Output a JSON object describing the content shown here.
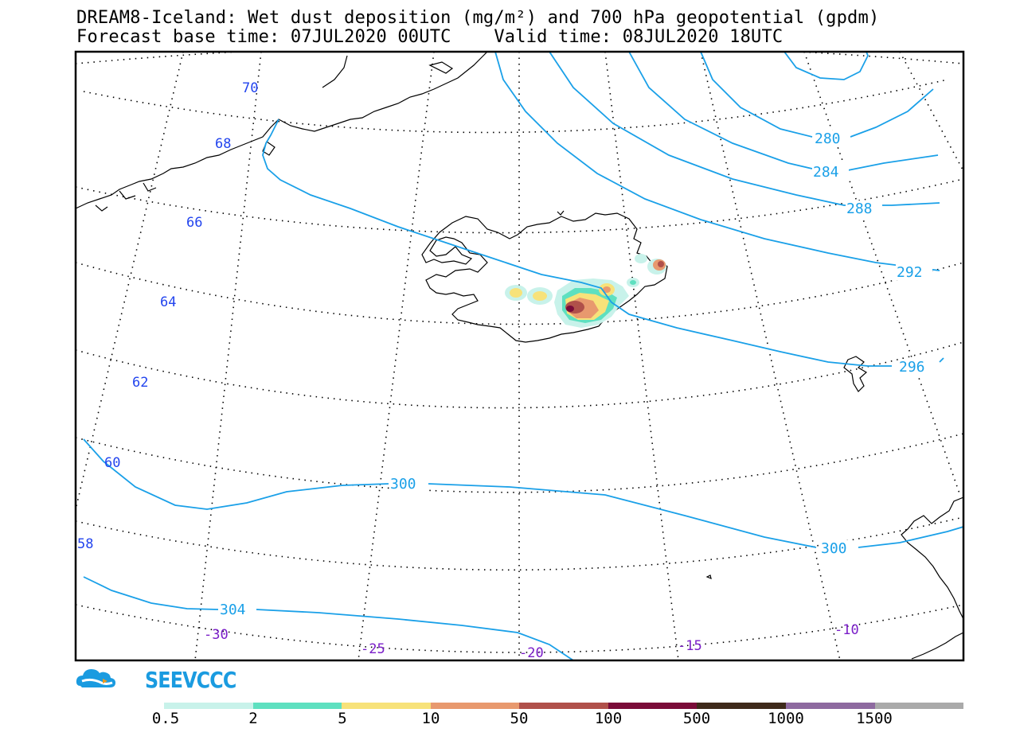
{
  "title": {
    "line1": "DREAM8-Iceland: Wet dust deposition (mg/m²) and 700 hPa geopotential (gpdm)",
    "line2": "Forecast base time: 07JUL2020 00UTC    Valid time: 08JUL2020 18UTC"
  },
  "map": {
    "latitude_labels": [
      "70",
      "68",
      "66",
      "64",
      "62",
      "60",
      "58"
    ],
    "longitude_labels": [
      "-30",
      "-25",
      "-20",
      "-15",
      "-10"
    ],
    "contour_labels": [
      "280",
      "284",
      "288",
      "292",
      "296",
      "300",
      "300",
      "304"
    ],
    "contour_color": "#1aa0e8",
    "label_colors": {
      "latitude": "#2244ee",
      "longitude": "#7a1ec8",
      "contour": "#1aa0e8"
    }
  },
  "logo": {
    "text": "SEEVCCC",
    "color": "#1a9be0"
  },
  "colorbar": {
    "ticks": [
      "0.5",
      "2",
      "5",
      "10",
      "50",
      "100",
      "500",
      "1000",
      "1500"
    ],
    "colors": [
      "#c8f2ea",
      "#5ee0c0",
      "#f7e27a",
      "#e8996e",
      "#b0504a",
      "#7a0b38",
      "#3e2a1a",
      "#8e6aa0",
      "#aaaaaa"
    ]
  }
}
